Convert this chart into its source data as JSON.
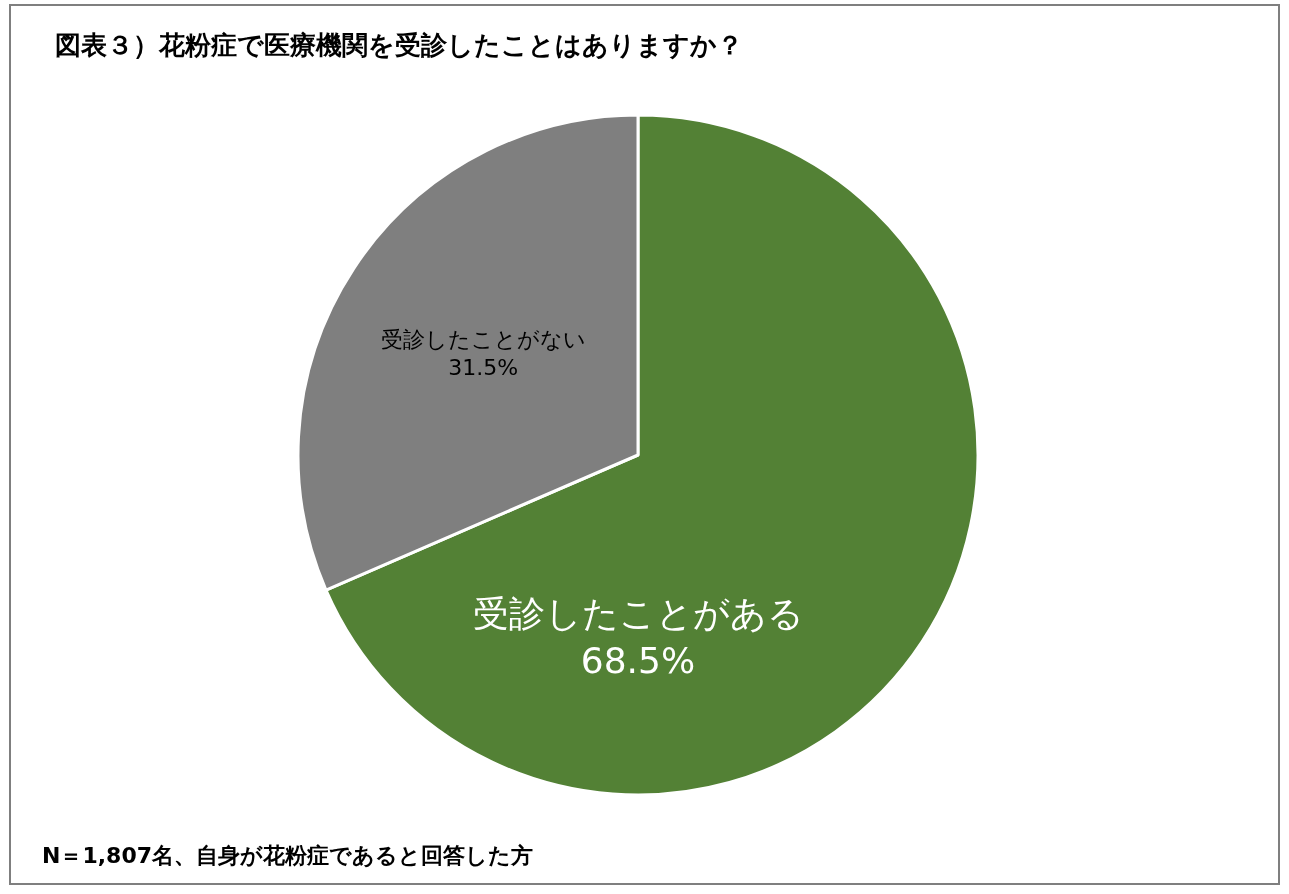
{
  "chart_data": {
    "type": "pie",
    "title": "図表３）花粉症で医療機関を受診したことはありますか？",
    "categories": [
      "受診したことがある",
      "受診したことがない"
    ],
    "values": [
      68.5,
      31.5
    ],
    "value_labels": [
      "68.5%",
      "31.5%"
    ],
    "colors": [
      "#538135",
      "#7f7f7f"
    ],
    "legend": false,
    "annotations": [
      "N＝1,807名、自身が花粉症であると回答した方"
    ]
  }
}
